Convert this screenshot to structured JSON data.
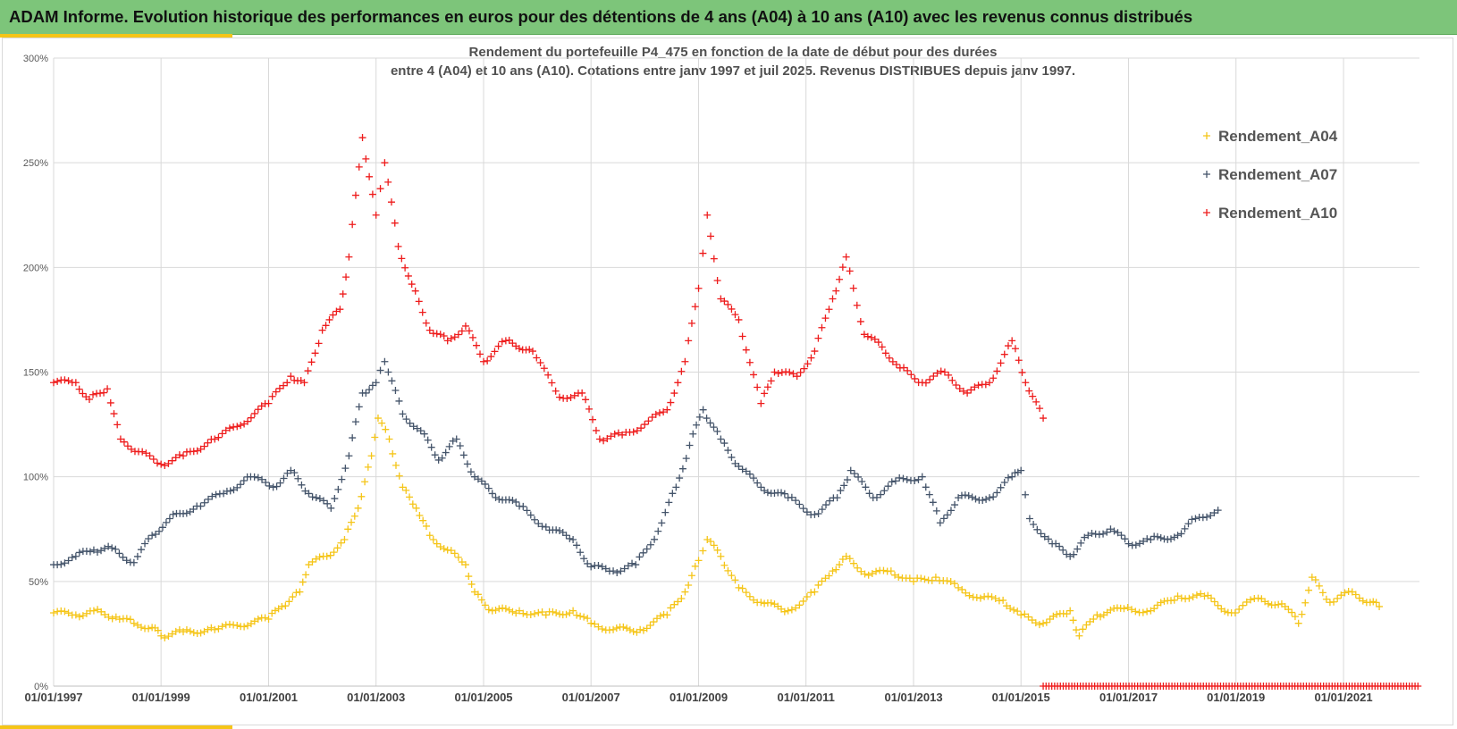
{
  "header": {
    "title": "ADAM Informe. Evolution historique des performances en euros pour des détentions de 4 ans (A04) à 10 ans (A10) avec les revenus connus distribués"
  },
  "colors": {
    "header_bg": "#7dc57a",
    "accent": "#f5c518",
    "A04": "#f5c518",
    "A07": "#44546a",
    "A10": "#ee1c1c",
    "grid": "#d9d9d9"
  },
  "chart_data": {
    "type": "scatter",
    "title_lines": [
      "Rendement du portefeuille P4_475 en fonction de la date de début pour des durées",
      "entre 4 (A04) et 10 ans (A10). Cotations entre janv 1997 et juil 2025. Revenus DISTRIBUES depuis janv 1997."
    ],
    "marker": "+",
    "legend_position": "right",
    "grid": "both",
    "x_axis": {
      "type": "date",
      "range": [
        "1997-01-01",
        "2022-06-01"
      ],
      "tick_labels": [
        "01/01/1997",
        "01/01/1999",
        "01/01/2001",
        "01/01/2003",
        "01/01/2005",
        "01/01/2007",
        "01/01/2009",
        "01/01/2011",
        "01/01/2013",
        "01/01/2015",
        "01/01/2017",
        "01/01/2019",
        "01/01/2021"
      ]
    },
    "y_axis": {
      "range": [
        0,
        300
      ],
      "unit": "%",
      "tick_labels": [
        "0%",
        "50%",
        "100%",
        "150%",
        "200%",
        "250%",
        "300%"
      ]
    },
    "series": [
      {
        "name": "Rendement_A04",
        "color": "#f5c518",
        "points": [
          [
            "1997-01-01",
            35
          ],
          [
            "1997-06-01",
            34
          ],
          [
            "1997-10-01",
            36
          ],
          [
            "1998-03-01",
            33
          ],
          [
            "1998-07-01",
            30
          ],
          [
            "1998-11-01",
            28
          ],
          [
            "1999-01-01",
            24
          ],
          [
            "1999-06-01",
            26
          ],
          [
            "2000-01-01",
            27
          ],
          [
            "2000-06-01",
            29
          ],
          [
            "2001-01-01",
            32
          ],
          [
            "2001-04-01",
            38
          ],
          [
            "2001-08-01",
            45
          ],
          [
            "2001-10-01",
            58
          ],
          [
            "2002-02-01",
            62
          ],
          [
            "2002-06-01",
            70
          ],
          [
            "2002-09-01",
            85
          ],
          [
            "2002-12-01",
            110
          ],
          [
            "2003-01-15",
            128
          ],
          [
            "2003-04-01",
            118
          ],
          [
            "2003-07-01",
            95
          ],
          [
            "2003-10-01",
            85
          ],
          [
            "2004-01-01",
            72
          ],
          [
            "2004-05-01",
            65
          ],
          [
            "2004-09-01",
            58
          ],
          [
            "2004-11-01",
            45
          ],
          [
            "2005-03-01",
            36
          ],
          [
            "2005-09-01",
            36
          ],
          [
            "2006-03-01",
            34
          ],
          [
            "2006-09-01",
            36
          ],
          [
            "2007-01-01",
            30
          ],
          [
            "2007-06-01",
            27
          ],
          [
            "2007-12-01",
            27
          ],
          [
            "2008-06-01",
            34
          ],
          [
            "2008-10-01",
            45
          ],
          [
            "2009-01-01",
            60
          ],
          [
            "2009-03-01",
            70
          ],
          [
            "2009-06-01",
            62
          ],
          [
            "2009-10-01",
            47
          ],
          [
            "2010-03-01",
            40
          ],
          [
            "2010-09-01",
            36
          ],
          [
            "2011-03-01",
            45
          ],
          [
            "2011-07-01",
            55
          ],
          [
            "2011-10-01",
            62
          ],
          [
            "2012-03-01",
            53
          ],
          [
            "2012-08-01",
            55
          ],
          [
            "2013-01-01",
            50
          ],
          [
            "2013-06-01",
            52
          ],
          [
            "2013-11-01",
            47
          ],
          [
            "2014-04-01",
            42
          ],
          [
            "2014-09-01",
            41
          ],
          [
            "2015-01-01",
            34
          ],
          [
            "2015-06-01",
            30
          ],
          [
            "2015-12-01",
            36
          ],
          [
            "2016-02-01",
            24
          ],
          [
            "2016-06-01",
            34
          ],
          [
            "2016-12-01",
            37
          ],
          [
            "2017-06-01",
            36
          ],
          [
            "2017-12-01",
            43
          ],
          [
            "2018-06-01",
            43
          ],
          [
            "2018-12-01",
            35
          ],
          [
            "2019-06-01",
            42
          ],
          [
            "2019-12-01",
            38
          ],
          [
            "2020-03-01",
            30
          ],
          [
            "2020-06-01",
            52
          ],
          [
            "2020-10-01",
            40
          ],
          [
            "2021-03-01",
            45
          ],
          [
            "2021-07-01",
            40
          ],
          [
            "2021-09-01",
            38
          ]
        ]
      },
      {
        "name": "Rendement_A07",
        "color": "#44546a",
        "points": [
          [
            "1997-01-01",
            58
          ],
          [
            "1997-06-01",
            62
          ],
          [
            "1997-10-01",
            65
          ],
          [
            "1998-02-01",
            66
          ],
          [
            "1998-07-01",
            59
          ],
          [
            "1998-11-01",
            72
          ],
          [
            "1999-03-01",
            80
          ],
          [
            "1999-09-01",
            86
          ],
          [
            "2000-03-01",
            92
          ],
          [
            "2000-09-01",
            100
          ],
          [
            "2001-02-01",
            95
          ],
          [
            "2001-06-01",
            103
          ],
          [
            "2001-10-01",
            92
          ],
          [
            "2002-03-01",
            85
          ],
          [
            "2002-07-01",
            110
          ],
          [
            "2002-10-01",
            140
          ],
          [
            "2003-01-01",
            145
          ],
          [
            "2003-03-01",
            155
          ],
          [
            "2003-07-01",
            130
          ],
          [
            "2003-11-01",
            122
          ],
          [
            "2004-03-01",
            108
          ],
          [
            "2004-07-01",
            118
          ],
          [
            "2004-11-01",
            100
          ],
          [
            "2005-03-01",
            92
          ],
          [
            "2005-09-01",
            86
          ],
          [
            "2006-03-01",
            76
          ],
          [
            "2006-09-01",
            70
          ],
          [
            "2007-01-01",
            57
          ],
          [
            "2007-06-01",
            55
          ],
          [
            "2007-11-01",
            58
          ],
          [
            "2008-04-01",
            74
          ],
          [
            "2008-08-01",
            95
          ],
          [
            "2008-11-01",
            115
          ],
          [
            "2009-02-01",
            132
          ],
          [
            "2009-06-01",
            118
          ],
          [
            "2009-10-01",
            105
          ],
          [
            "2010-03-01",
            95
          ],
          [
            "2010-09-01",
            90
          ],
          [
            "2011-03-01",
            82
          ],
          [
            "2011-08-01",
            90
          ],
          [
            "2011-11-01",
            103
          ],
          [
            "2012-04-01",
            90
          ],
          [
            "2012-09-01",
            98
          ],
          [
            "2013-03-01",
            100
          ],
          [
            "2013-07-01",
            78
          ],
          [
            "2013-11-01",
            90
          ],
          [
            "2014-06-01",
            90
          ],
          [
            "2014-11-01",
            100
          ],
          [
            "2015-01-01",
            103
          ],
          [
            "2015-03-01",
            80
          ],
          [
            "2015-08-01",
            68
          ],
          [
            "2015-12-01",
            62
          ],
          [
            "2016-04-01",
            72
          ],
          [
            "2016-09-01",
            75
          ],
          [
            "2017-01-01",
            68
          ],
          [
            "2017-06-01",
            70
          ],
          [
            "2017-12-01",
            72
          ],
          [
            "2018-04-01",
            80
          ],
          [
            "2018-09-01",
            84
          ]
        ]
      },
      {
        "name": "Rendement_A10",
        "color": "#ee1c1c",
        "points": [
          [
            "1997-01-01",
            145
          ],
          [
            "1997-06-01",
            145
          ],
          [
            "1997-09-01",
            137
          ],
          [
            "1998-01-01",
            142
          ],
          [
            "1998-04-01",
            118
          ],
          [
            "1998-08-01",
            112
          ],
          [
            "1999-01-01",
            106
          ],
          [
            "1999-06-01",
            110
          ],
          [
            "2000-01-01",
            118
          ],
          [
            "2000-06-01",
            124
          ],
          [
            "2001-01-01",
            135
          ],
          [
            "2001-06-01",
            148
          ],
          [
            "2001-09-01",
            145
          ],
          [
            "2002-01-01",
            170
          ],
          [
            "2002-05-01",
            180
          ],
          [
            "2002-07-01",
            205
          ],
          [
            "2002-10-01",
            262
          ],
          [
            "2003-01-01",
            225
          ],
          [
            "2003-03-01",
            250
          ],
          [
            "2003-06-01",
            210
          ],
          [
            "2003-09-01",
            192
          ],
          [
            "2004-01-01",
            170
          ],
          [
            "2004-05-01",
            165
          ],
          [
            "2004-09-01",
            172
          ],
          [
            "2005-01-01",
            155
          ],
          [
            "2005-06-01",
            165
          ],
          [
            "2005-12-01",
            160
          ],
          [
            "2006-06-01",
            138
          ],
          [
            "2006-11-01",
            140
          ],
          [
            "2007-03-01",
            118
          ],
          [
            "2007-08-01",
            120
          ],
          [
            "2008-01-01",
            125
          ],
          [
            "2008-06-01",
            132
          ],
          [
            "2008-10-01",
            155
          ],
          [
            "2009-01-01",
            190
          ],
          [
            "2009-03-01",
            225
          ],
          [
            "2009-06-01",
            185
          ],
          [
            "2009-10-01",
            175
          ],
          [
            "2010-03-01",
            135
          ],
          [
            "2010-06-01",
            150
          ],
          [
            "2010-11-01",
            148
          ],
          [
            "2011-03-01",
            160
          ],
          [
            "2011-07-01",
            185
          ],
          [
            "2011-10-01",
            205
          ],
          [
            "2012-02-01",
            168
          ],
          [
            "2012-06-01",
            162
          ],
          [
            "2012-10-01",
            152
          ],
          [
            "2013-03-01",
            145
          ],
          [
            "2013-08-01",
            150
          ],
          [
            "2014-01-01",
            140
          ],
          [
            "2014-06-01",
            145
          ],
          [
            "2014-11-01",
            165
          ],
          [
            "2015-02-01",
            145
          ],
          [
            "2015-06-01",
            128
          ]
        ]
      }
    ],
    "zero_markers": {
      "color": "#ee1c1c",
      "y": 0,
      "x_range": [
        "2015-06-01",
        "2022-06-01"
      ]
    }
  },
  "legend": {
    "items": [
      "Rendement_A04",
      "Rendement_A07",
      "Rendement_A10"
    ]
  }
}
